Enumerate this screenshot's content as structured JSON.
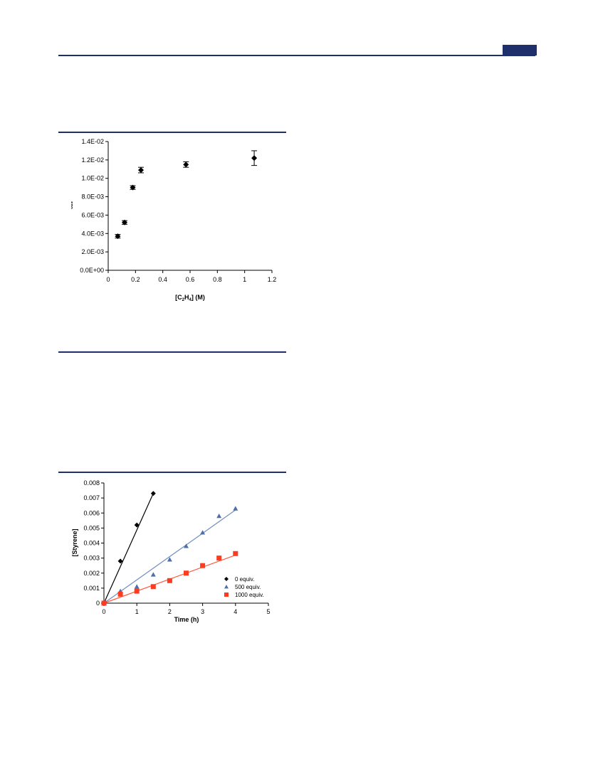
{
  "page": {
    "header_rule_color": "#1f2f6b",
    "header_tab_color": "#1f2f6b"
  },
  "chart_data": [
    {
      "type": "scatter",
      "title": "",
      "xlabel": "[C2H4] (M)",
      "xlabel_parts": {
        "pre": "[C",
        "sub1": "2",
        "mid": "H",
        "sub2": "4",
        "post": "] (M)"
      },
      "ylabel": "kobs",
      "ylabel_parts": {
        "main": "k",
        "sub": "obs"
      },
      "xlim": [
        0,
        1.2
      ],
      "ylim": [
        0,
        0.014
      ],
      "x_ticks": [
        0,
        0.2,
        0.4,
        0.6,
        0.8,
        1,
        1.2
      ],
      "x_tick_labels": [
        "0",
        "0.2",
        "0.4",
        "0.6",
        "0.8",
        "1",
        "1.2"
      ],
      "y_ticks": [
        0,
        0.002,
        0.004,
        0.006,
        0.008,
        0.01,
        0.012,
        0.014
      ],
      "y_tick_labels": [
        "0.0E+00",
        "2.0E-03",
        "4.0E-03",
        "6.0E-03",
        "8.0E-03",
        "1.0E-02",
        "1.2E-02",
        "1.4E-02"
      ],
      "grid": false,
      "marker": "diamond",
      "color": "#000000",
      "points": [
        {
          "x": 0.07,
          "y": 0.0037,
          "err": 0.0002
        },
        {
          "x": 0.12,
          "y": 0.0052,
          "err": 0.0002
        },
        {
          "x": 0.18,
          "y": 0.009,
          "err": 0.0002
        },
        {
          "x": 0.24,
          "y": 0.0109,
          "err": 0.0003
        },
        {
          "x": 0.57,
          "y": 0.0115,
          "err": 0.0003
        },
        {
          "x": 1.07,
          "y": 0.0122,
          "err": 0.0008
        }
      ]
    },
    {
      "type": "scatter",
      "title": "",
      "xlabel": "Time (h)",
      "ylabel": "[Styrene]",
      "xlim": [
        0,
        5
      ],
      "ylim": [
        0,
        0.008
      ],
      "x_ticks": [
        0,
        1,
        2,
        3,
        4,
        5
      ],
      "x_tick_labels": [
        "0",
        "1",
        "2",
        "3",
        "4",
        "5"
      ],
      "y_ticks": [
        0,
        0.001,
        0.002,
        0.003,
        0.004,
        0.005,
        0.006,
        0.007,
        0.008
      ],
      "y_tick_labels": [
        "0",
        "0.001",
        "0.002",
        "0.003",
        "0.004",
        "0.005",
        "0.006",
        "0.007",
        "0.008"
      ],
      "grid": false,
      "legend_position": "bottom-right",
      "series": [
        {
          "name": "0 equiv.",
          "marker": "diamond",
          "color": "#000000",
          "line_color": "#000000",
          "x": [
            0,
            0.5,
            1,
            1.5
          ],
          "y": [
            0,
            0.0028,
            0.0052,
            0.0073
          ],
          "fit": {
            "x": [
              0,
              1.5
            ],
            "y": [
              0,
              0.0073
            ]
          }
        },
        {
          "name": "500 equiv.",
          "marker": "triangle",
          "color": "#4f6fa8",
          "line_color": "#6f8fbf",
          "x": [
            0,
            0.5,
            1,
            1.5,
            2,
            2.5,
            3,
            3.5,
            4
          ],
          "y": [
            0,
            0.0008,
            0.0011,
            0.0019,
            0.0029,
            0.0038,
            0.0047,
            0.0058,
            0.0063
          ],
          "fit": {
            "x": [
              0,
              4
            ],
            "y": [
              0,
              0.0062
            ]
          }
        },
        {
          "name": "1000 equiv.",
          "marker": "square",
          "color": "#ff3b1f",
          "line_color": "#ff5a40",
          "x": [
            0,
            0.5,
            1,
            1.5,
            2,
            2.5,
            3,
            3.5,
            4
          ],
          "y": [
            0,
            0.0006,
            0.0008,
            0.0011,
            0.0015,
            0.002,
            0.0025,
            0.003,
            0.0033
          ],
          "fit": {
            "x": [
              0,
              4
            ],
            "y": [
              0,
              0.0032
            ]
          }
        }
      ]
    }
  ]
}
